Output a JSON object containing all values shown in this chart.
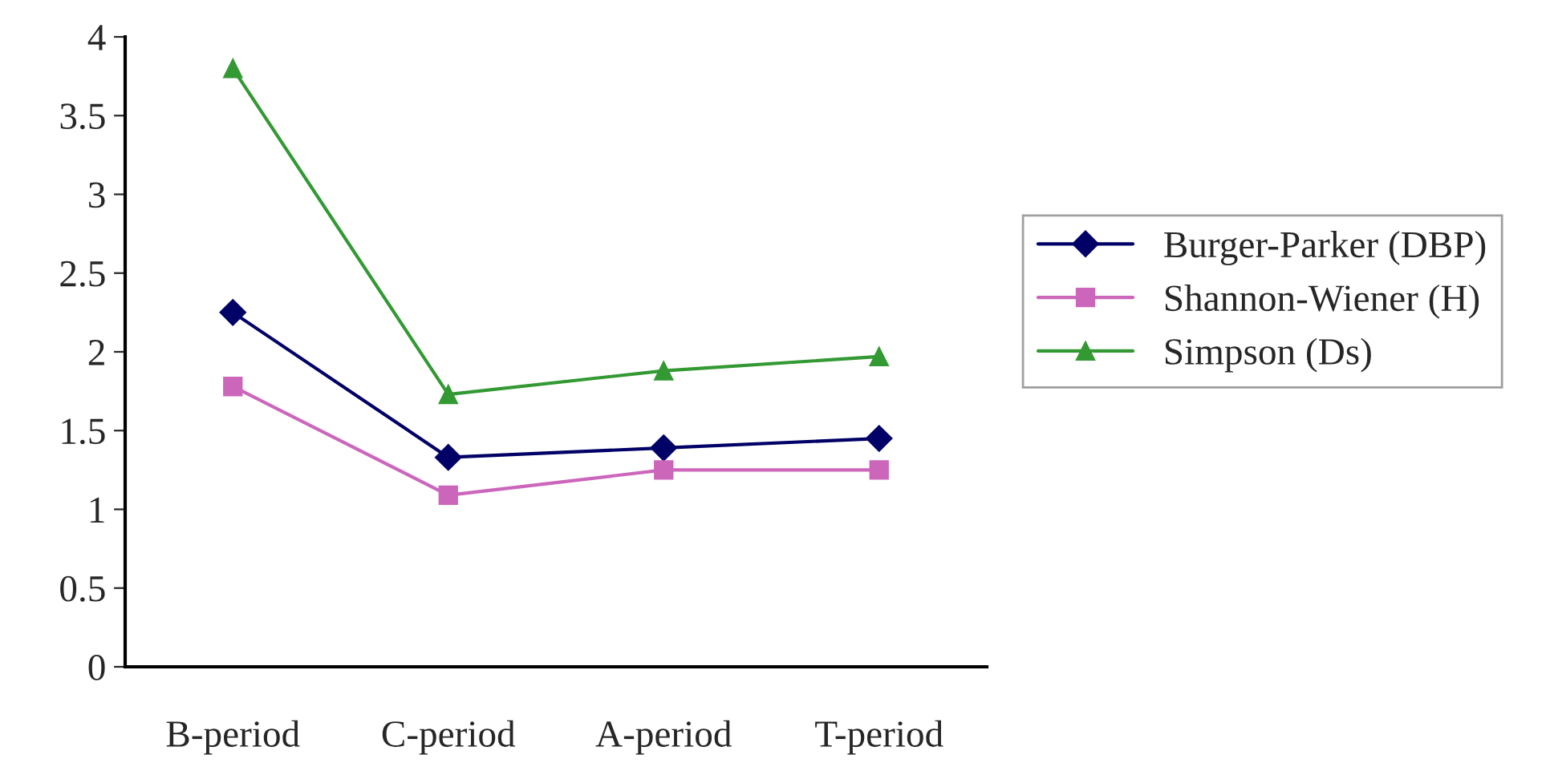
{
  "chart_data": {
    "type": "line",
    "categories": [
      "B-period",
      "C-period",
      "A-period",
      "T-period"
    ],
    "series": [
      {
        "name": "Burger-Parker (DBP)",
        "color": "#000066",
        "marker": "diamond",
        "values": [
          2.25,
          1.33,
          1.39,
          1.45
        ]
      },
      {
        "name": "Shannon-Wiener (H)",
        "color": "#cc66bb",
        "marker": "square",
        "values": [
          1.78,
          1.09,
          1.25,
          1.25
        ]
      },
      {
        "name": "Simpson (Ds)",
        "color": "#339933",
        "marker": "triangle",
        "values": [
          3.8,
          1.73,
          1.88,
          1.97
        ]
      }
    ],
    "ylim": [
      0,
      4
    ],
    "yticks": [
      0,
      0.5,
      1,
      1.5,
      2,
      2.5,
      3,
      3.5,
      4
    ],
    "grid": false,
    "legend": "right"
  }
}
